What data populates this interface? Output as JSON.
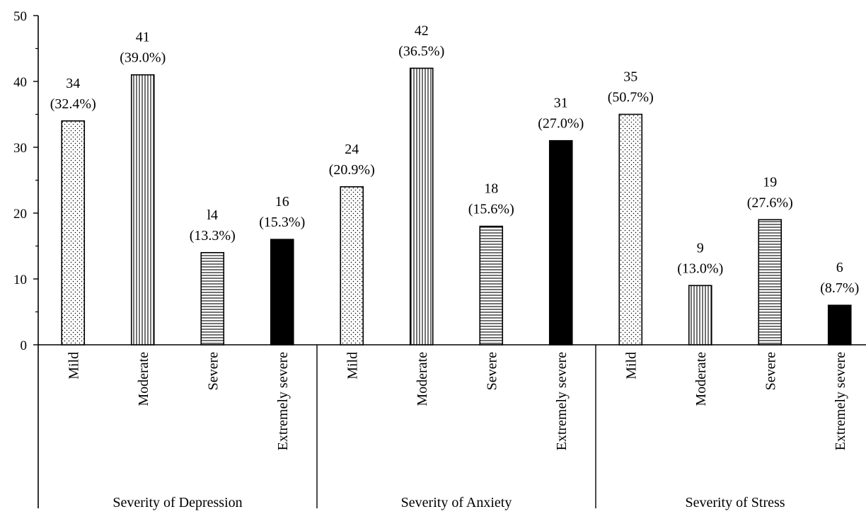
{
  "chart_data": {
    "type": "bar",
    "title": "",
    "xlabel": "",
    "ylabel": "",
    "ylim": [
      0,
      50
    ],
    "yticks": [
      0,
      10,
      20,
      30,
      40,
      50
    ],
    "yticks_text": [
      "0",
      "10",
      "20",
      "30",
      "40",
      "50"
    ],
    "grid": false,
    "legend": "none",
    "pattern_key": {
      "Mild": "dotted",
      "Moderate": "vertical-stripes",
      "Severe": "horizontal-stripes",
      "Extremely severe": "solid-black"
    },
    "groups": [
      {
        "name": "Severity of Depression",
        "categories": [
          "Mild",
          "Moderate",
          "Severe",
          "Extremely severe"
        ],
        "values": [
          34,
          41,
          14,
          16
        ],
        "count_labels": [
          "34",
          "41",
          "l4",
          "16"
        ],
        "percent_labels": [
          "(32.4%)",
          "(39.0%)",
          "(13.3%)",
          "(15.3%)"
        ]
      },
      {
        "name": "Severity of Anxiety",
        "categories": [
          "Mild",
          "Moderate",
          "Severe",
          "Extremely severe"
        ],
        "values": [
          24,
          42,
          18,
          31
        ],
        "count_labels": [
          "24",
          "42",
          "18",
          "31"
        ],
        "percent_labels": [
          "(20.9%)",
          "(36.5%)",
          "(15.6%)",
          "(27.0%)"
        ]
      },
      {
        "name": "Severity of Stress",
        "categories": [
          "Mild",
          "Moderate",
          "Severe",
          "Extremely severe"
        ],
        "values": [
          35,
          9,
          19,
          6
        ],
        "count_labels": [
          "35",
          "9",
          "19",
          "6"
        ],
        "percent_labels": [
          "(50.7%)",
          "(13.0%)",
          "(27.6%)",
          "(8.7%)"
        ]
      }
    ]
  }
}
